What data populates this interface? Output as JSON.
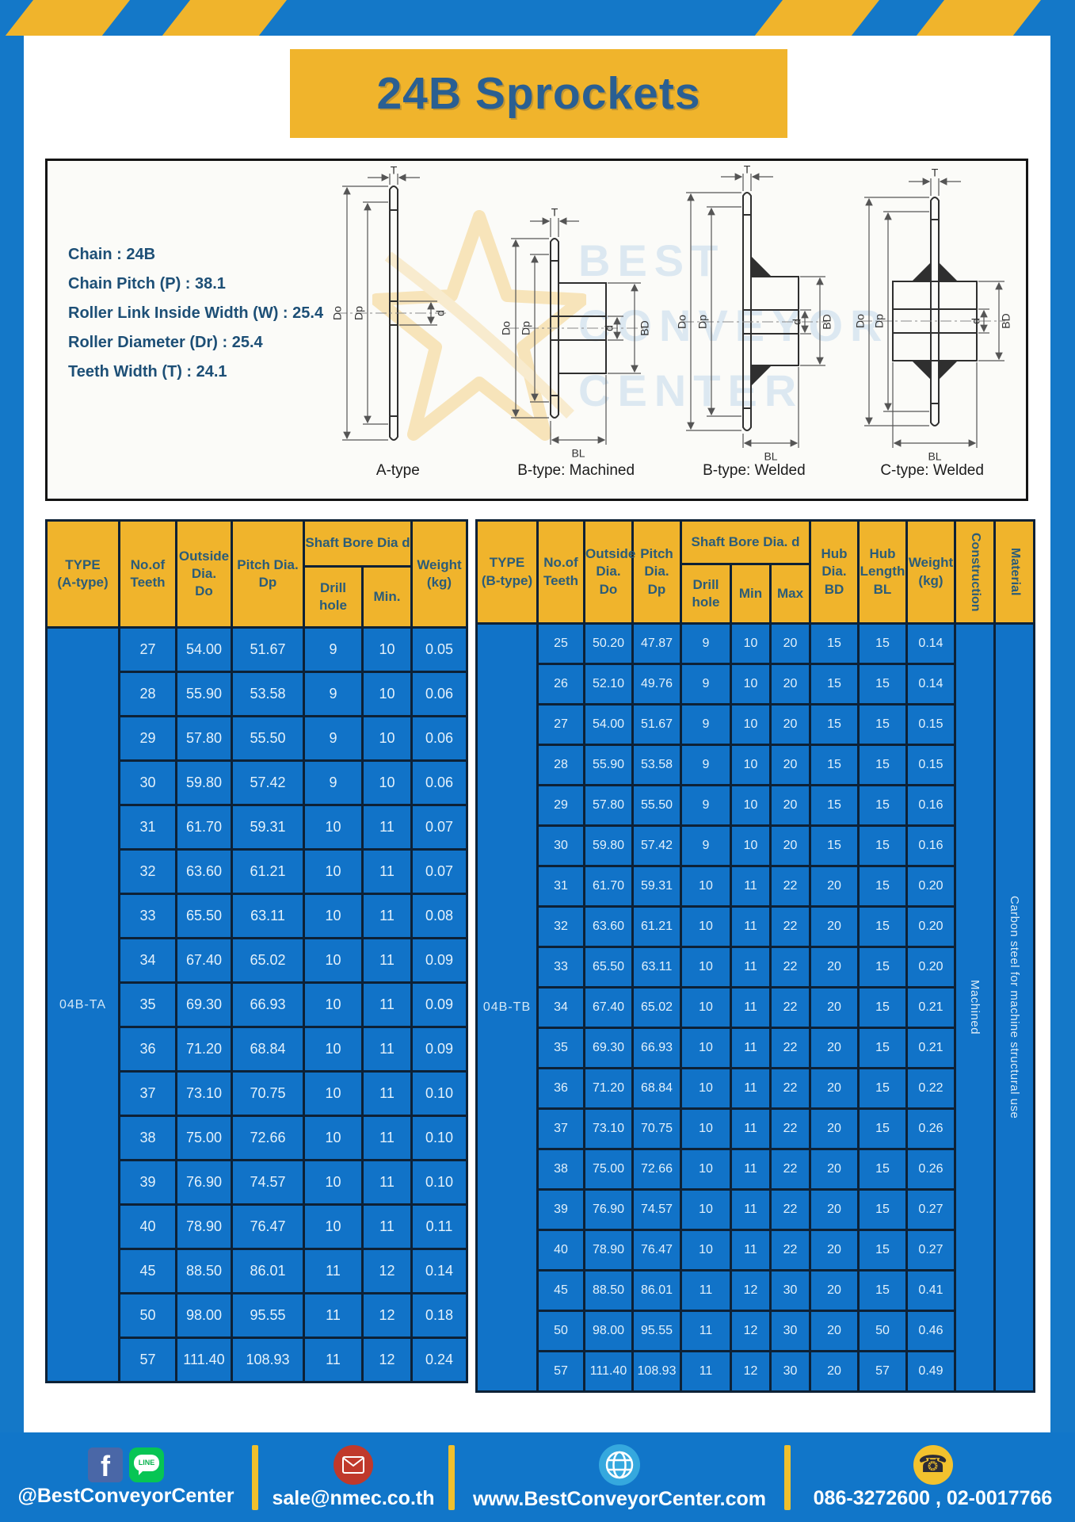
{
  "title": "24B Sprockets",
  "specs": {
    "lines": "Chain : 24B\nChain Pitch (P) : 38.1\nRoller Link Inside Width (W) : 25.4\nRoller Diameter (Dr) : 25.4\nTeeth Width (T) : 24.1"
  },
  "diagram": {
    "watermark": {
      "line1": "BEST",
      "line2": "CONVEYOR",
      "line3": "CENTER"
    },
    "dims": {
      "t": "T",
      "outer": "Do",
      "pitch": "Dp",
      "bore": "d",
      "hub_dia": "BD",
      "hub_len": "BL"
    },
    "type_labels": [
      "A-type",
      "B-type: Machined",
      "B-type: Welded",
      "C-type: Welded"
    ]
  },
  "table_a": {
    "headers": {
      "type": "TYPE\n(A-type)",
      "teeth": "No.of\nTeeth",
      "outside": "Outside\nDia.\nDo",
      "pitch": "Pitch Dia.\nDp",
      "shaft_bore": "Shaft Bore Dia d",
      "drill": "Drill hole",
      "min": "Min.",
      "weight": "Weight\n(kg)"
    },
    "type_label": "04B-TA",
    "rows": [
      [
        "27",
        "54.00",
        "51.67",
        "9",
        "10",
        "0.05"
      ],
      [
        "28",
        "55.90",
        "53.58",
        "9",
        "10",
        "0.06"
      ],
      [
        "29",
        "57.80",
        "55.50",
        "9",
        "10",
        "0.06"
      ],
      [
        "30",
        "59.80",
        "57.42",
        "9",
        "10",
        "0.06"
      ],
      [
        "31",
        "61.70",
        "59.31",
        "10",
        "11",
        "0.07"
      ],
      [
        "32",
        "63.60",
        "61.21",
        "10",
        "11",
        "0.07"
      ],
      [
        "33",
        "65.50",
        "63.11",
        "10",
        "11",
        "0.08"
      ],
      [
        "34",
        "67.40",
        "65.02",
        "10",
        "11",
        "0.09"
      ],
      [
        "35",
        "69.30",
        "66.93",
        "10",
        "11",
        "0.09"
      ],
      [
        "36",
        "71.20",
        "68.84",
        "10",
        "11",
        "0.09"
      ],
      [
        "37",
        "73.10",
        "70.75",
        "10",
        "11",
        "0.10"
      ],
      [
        "38",
        "75.00",
        "72.66",
        "10",
        "11",
        "0.10"
      ],
      [
        "39",
        "76.90",
        "74.57",
        "10",
        "11",
        "0.10"
      ],
      [
        "40",
        "78.90",
        "76.47",
        "10",
        "11",
        "0.11"
      ],
      [
        "45",
        "88.50",
        "86.01",
        "11",
        "12",
        "0.14"
      ],
      [
        "50",
        "98.00",
        "95.55",
        "11",
        "12",
        "0.18"
      ],
      [
        "57",
        "111.40",
        "108.93",
        "11",
        "12",
        "0.24"
      ]
    ]
  },
  "table_b": {
    "headers": {
      "type": "TYPE\n(B-type)",
      "teeth": "No.of\nTeeth",
      "outside": "Outside\nDia.\nDo",
      "pitch": "Pitch\nDia.\nDp",
      "shaft_bore": "Shaft Bore Dia. d",
      "drill": "Drill hole",
      "min": "Min",
      "max": "Max",
      "hub_dia": "Hub\nDia.\nBD",
      "hub_len": "Hub\nLength\nBL",
      "weight": "Weight\n(kg)",
      "construction": "Construction",
      "material": "Material"
    },
    "type_label": "04B-TB",
    "construction_value": "Machined",
    "material_value": "Carbon steel for machine structural use",
    "rows": [
      [
        "25",
        "50.20",
        "47.87",
        "9",
        "10",
        "20",
        "15",
        "15",
        "0.14"
      ],
      [
        "26",
        "52.10",
        "49.76",
        "9",
        "10",
        "20",
        "15",
        "15",
        "0.14"
      ],
      [
        "27",
        "54.00",
        "51.67",
        "9",
        "10",
        "20",
        "15",
        "15",
        "0.15"
      ],
      [
        "28",
        "55.90",
        "53.58",
        "9",
        "10",
        "20",
        "15",
        "15",
        "0.15"
      ],
      [
        "29",
        "57.80",
        "55.50",
        "9",
        "10",
        "20",
        "15",
        "15",
        "0.16"
      ],
      [
        "30",
        "59.80",
        "57.42",
        "9",
        "10",
        "20",
        "15",
        "15",
        "0.16"
      ],
      [
        "31",
        "61.70",
        "59.31",
        "10",
        "11",
        "22",
        "20",
        "15",
        "0.20"
      ],
      [
        "32",
        "63.60",
        "61.21",
        "10",
        "11",
        "22",
        "20",
        "15",
        "0.20"
      ],
      [
        "33",
        "65.50",
        "63.11",
        "10",
        "11",
        "22",
        "20",
        "15",
        "0.20"
      ],
      [
        "34",
        "67.40",
        "65.02",
        "10",
        "11",
        "22",
        "20",
        "15",
        "0.21"
      ],
      [
        "35",
        "69.30",
        "66.93",
        "10",
        "11",
        "22",
        "20",
        "15",
        "0.21"
      ],
      [
        "36",
        "71.20",
        "68.84",
        "10",
        "11",
        "22",
        "20",
        "15",
        "0.22"
      ],
      [
        "37",
        "73.10",
        "70.75",
        "10",
        "11",
        "22",
        "20",
        "15",
        "0.26"
      ],
      [
        "38",
        "75.00",
        "72.66",
        "10",
        "11",
        "22",
        "20",
        "15",
        "0.26"
      ],
      [
        "39",
        "76.90",
        "74.57",
        "10",
        "11",
        "22",
        "20",
        "15",
        "0.27"
      ],
      [
        "40",
        "78.90",
        "76.47",
        "10",
        "11",
        "22",
        "20",
        "15",
        "0.27"
      ],
      [
        "45",
        "88.50",
        "86.01",
        "11",
        "12",
        "30",
        "20",
        "15",
        "0.41"
      ],
      [
        "50",
        "98.00",
        "95.55",
        "11",
        "12",
        "30",
        "20",
        "50",
        "0.46"
      ],
      [
        "57",
        "111.40",
        "108.93",
        "11",
        "12",
        "30",
        "20",
        "57",
        "0.49"
      ]
    ]
  },
  "footer": {
    "social_handle": "@BestConveyorCenter",
    "email": "sale@nmec.co.th",
    "website": "www.BestConveyorCenter.com",
    "phones": "086-3272600 , 02-0017766",
    "line_label": "LINE",
    "facebook_letter": "f",
    "phone_glyph": "☎"
  },
  "colors": {
    "frame_blue": "#1478c8",
    "cell_blue": "#1173c8",
    "accent_yellow": "#f0b42c",
    "grid_dark": "#0d2136",
    "header_text": "#2b5c78",
    "title_text": "#2a5f92",
    "cell_text": "#e3f1fb"
  }
}
